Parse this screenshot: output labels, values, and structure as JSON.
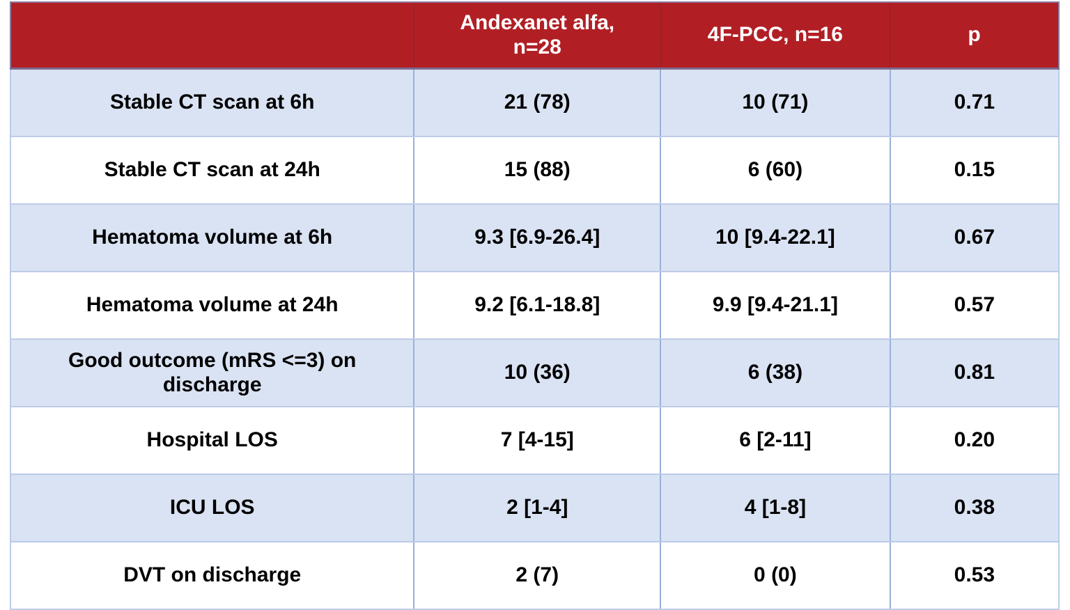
{
  "colors": {
    "header_bg": "#B11F25",
    "header_text": "#FFFFFF",
    "row_alt_bg": "#DAE3F3",
    "row_bg": "#FFFFFF",
    "grid_vertical": "#9AAFD9",
    "grid_horizontal": "#BCCBE8",
    "header_underline": "#7B6C94",
    "cell_text": "#000000"
  },
  "chart_data": {
    "type": "table",
    "columns": [
      "",
      "Andexanet alfa, n=28",
      "4F-PCC, n=16",
      "p"
    ],
    "header": {
      "empty": "",
      "andexanet_alfa": "Andexanet alfa,\nn=28",
      "four_f_pcc": "4F-PCC, n=16",
      "p": "p"
    },
    "rows": [
      {
        "label": "Stable CT scan at 6h",
        "andexanet_alfa": "21 (78)",
        "four_f_pcc": "10 (71)",
        "p": "0.71"
      },
      {
        "label": "Stable CT scan at 24h",
        "andexanet_alfa": "15 (88)",
        "four_f_pcc": "6 (60)",
        "p": "0.15"
      },
      {
        "label": "Hematoma volume at 6h",
        "andexanet_alfa": "9.3 [6.9-26.4]",
        "four_f_pcc": "10 [9.4-22.1]",
        "p": "0.67"
      },
      {
        "label": "Hematoma volume at 24h",
        "andexanet_alfa": "9.2 [6.1-18.8]",
        "four_f_pcc": "9.9 [9.4-21.1]",
        "p": "0.57"
      },
      {
        "label": "Good outcome (mRS <=3) on\ndischarge",
        "andexanet_alfa": "10 (36)",
        "four_f_pcc": "6 (38)",
        "p": "0.81"
      },
      {
        "label": "Hospital LOS",
        "andexanet_alfa": "7 [4-15]",
        "four_f_pcc": "6 [2-11]",
        "p": "0.20"
      },
      {
        "label": "ICU LOS",
        "andexanet_alfa": "2 [1-4]",
        "four_f_pcc": "4 [1-8]",
        "p": "0.38"
      },
      {
        "label": "DVT on discharge",
        "andexanet_alfa": "2 (7)",
        "four_f_pcc": "0 (0)",
        "p": "0.53"
      }
    ]
  }
}
